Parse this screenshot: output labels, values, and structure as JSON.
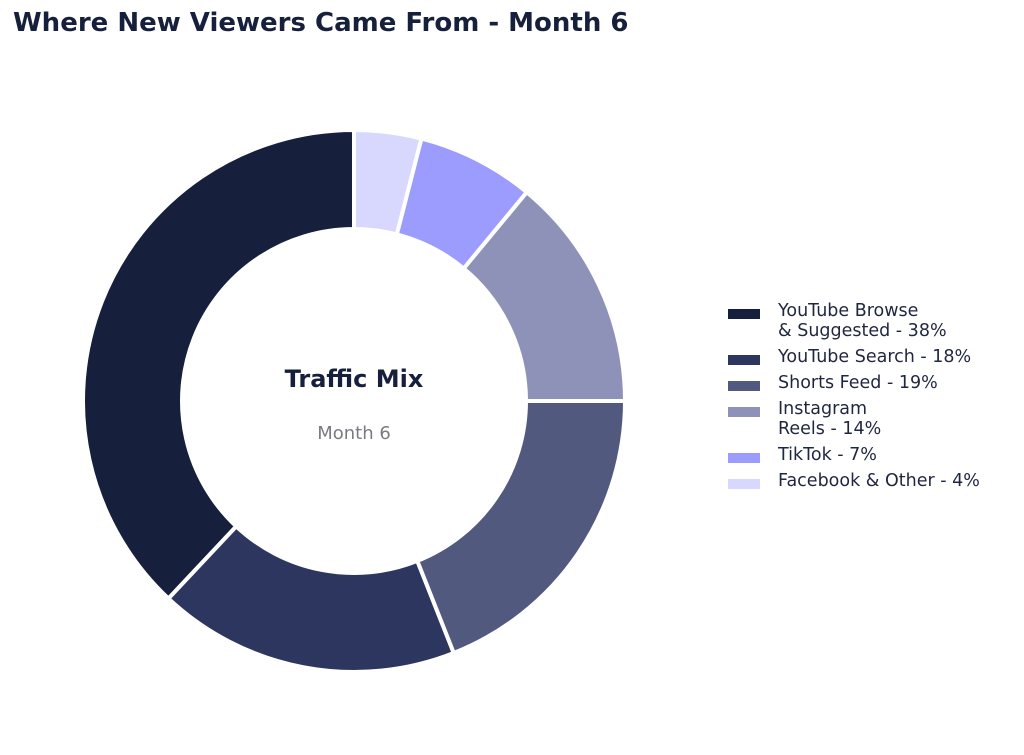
{
  "title": "Where New Viewers Came From - Month 6",
  "chart_data": {
    "type": "pie",
    "style": "donut",
    "title": "Where New Viewers Came From - Month 6",
    "center_title": "Traffic Mix",
    "center_subtitle": "Month 6",
    "legend_position": "right",
    "unit": "%",
    "slices": [
      {
        "label": "YouTube Browse\n& Suggested",
        "value": 38,
        "color": "#161f3b"
      },
      {
        "label": "YouTube Search",
        "value": 18,
        "color": "#2d365e"
      },
      {
        "label": "Shorts Feed",
        "value": 19,
        "color": "#52597f"
      },
      {
        "label": "Instagram\nReels",
        "value": 14,
        "color": "#8f92b8"
      },
      {
        "label": "TikTok",
        "value": 7,
        "color": "#9c9cff"
      },
      {
        "label": "Facebook & Other",
        "value": 4,
        "color": "#d8d8ff"
      }
    ]
  }
}
